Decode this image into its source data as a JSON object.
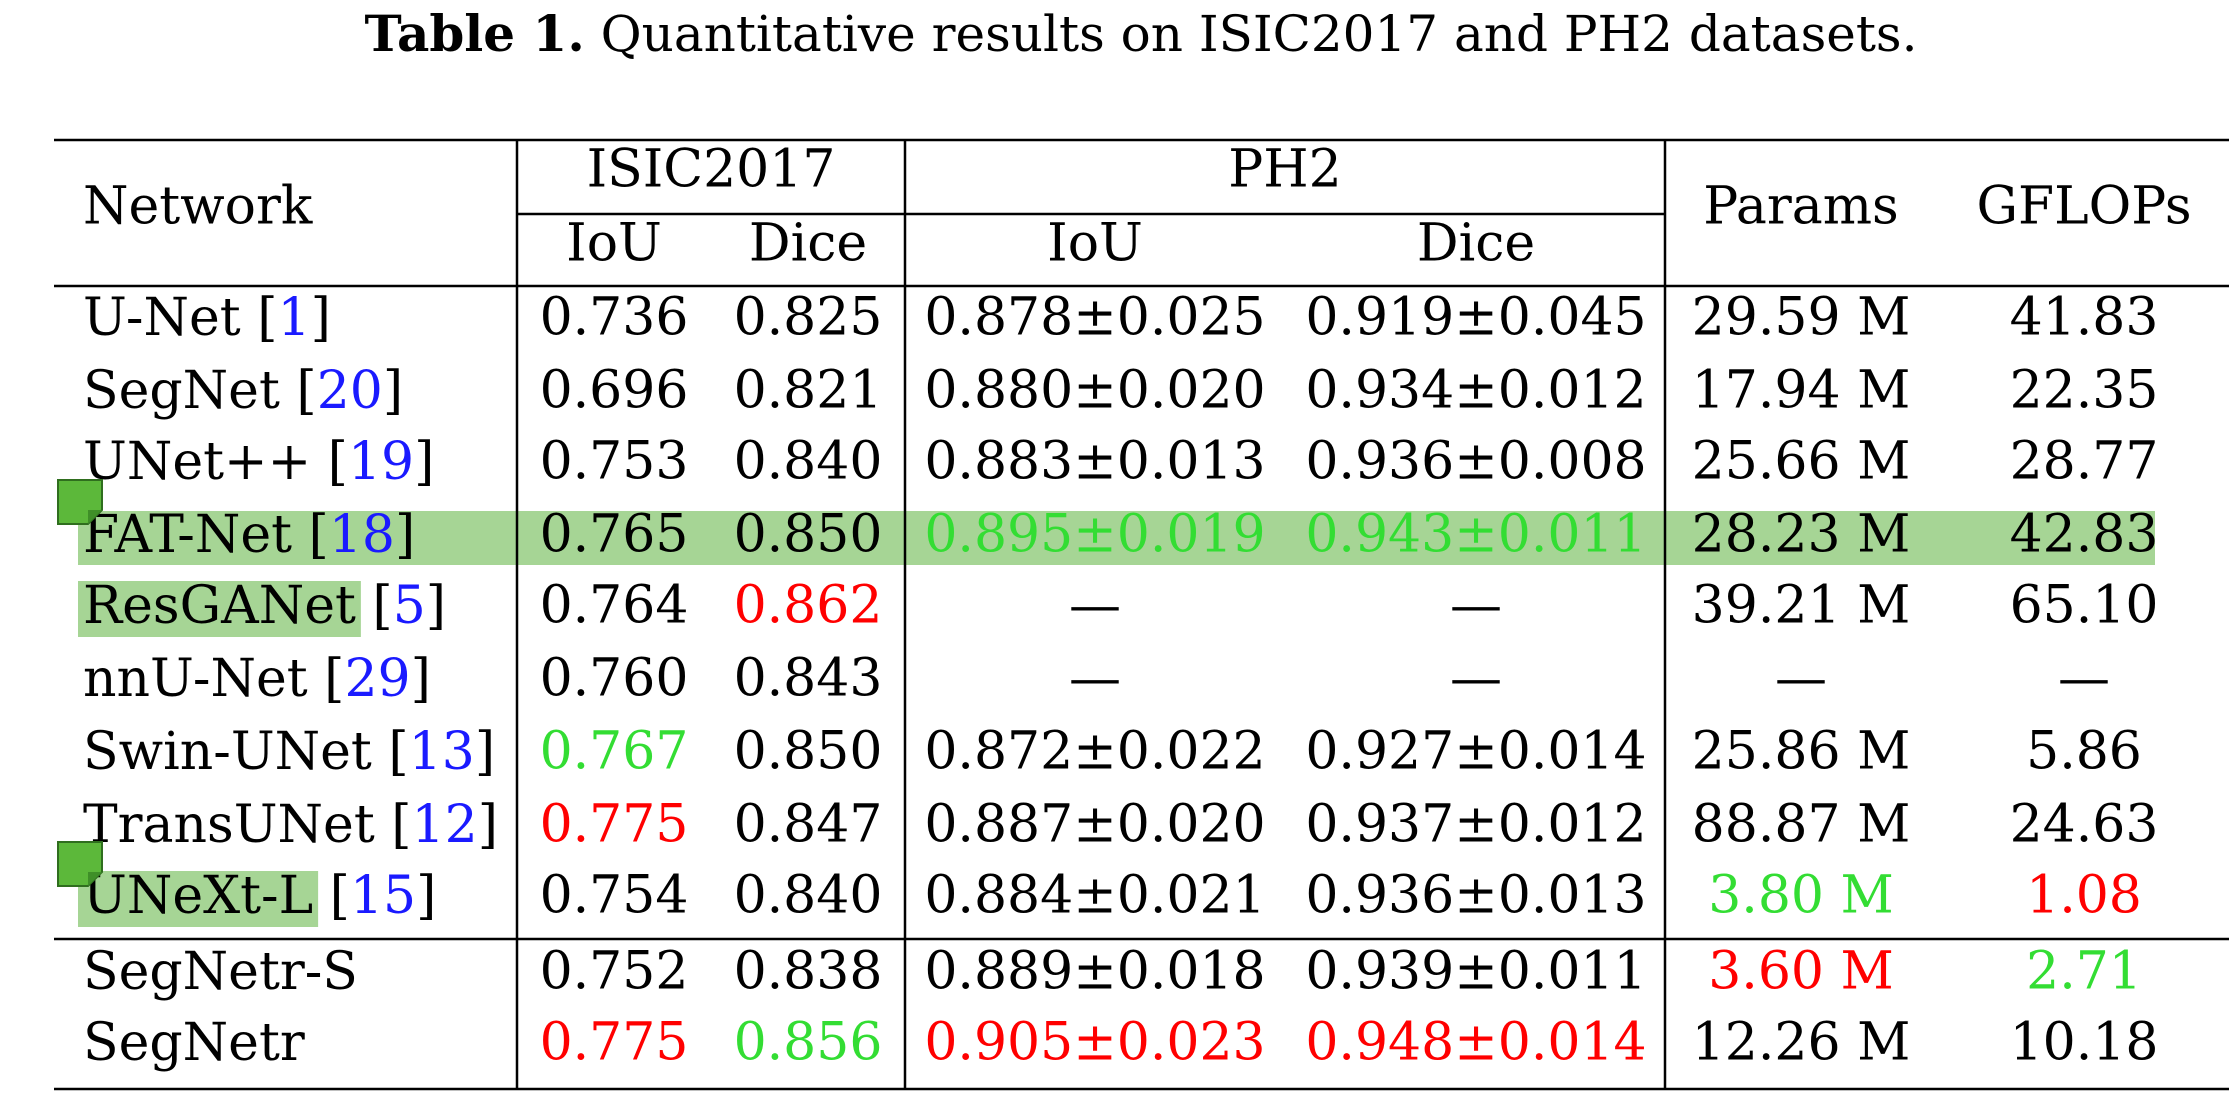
{
  "title": {
    "label": "Table 1.",
    "text": "Quantitative results on ISIC2017 and PH2 datasets."
  },
  "table": {
    "header": {
      "network": "Network",
      "groups": [
        "ISIC2017",
        "PH2"
      ],
      "sub": [
        "IoU",
        "Dice",
        "IoU",
        "Dice"
      ],
      "params": "Params",
      "gflops": "GFLOPs"
    },
    "brackets": [
      "[",
      "]"
    ],
    "rows": [
      {
        "name": "U-Net",
        "ref": "1",
        "cells": [
          "0.736",
          "0.825",
          "0.878±0.025",
          "0.919±0.045",
          "29.59 M",
          "41.83"
        ],
        "colors": [
          null,
          null,
          null,
          null,
          null,
          null
        ]
      },
      {
        "name": "SegNet",
        "ref": "20",
        "cells": [
          "0.696",
          "0.821",
          "0.880±0.020",
          "0.934±0.012",
          "17.94 M",
          "22.35"
        ],
        "colors": [
          null,
          null,
          null,
          null,
          null,
          null
        ]
      },
      {
        "name": "UNet++",
        "ref": "19",
        "cells": [
          "0.753",
          "0.840",
          "0.883±0.013",
          "0.936±0.008",
          "25.66 M",
          "28.77"
        ],
        "colors": [
          null,
          null,
          null,
          null,
          null,
          null
        ]
      },
      {
        "name": "FAT-Net",
        "ref": "18",
        "cells": [
          "0.765",
          "0.850",
          "0.895±0.019",
          "0.943±0.011",
          "28.23 M",
          "42.83"
        ],
        "colors": [
          null,
          null,
          "#33dd33",
          "#33dd33",
          null,
          null
        ],
        "highlight": "row"
      },
      {
        "name": "ResGANet",
        "ref": "5",
        "cells": [
          "0.764",
          "0.862",
          "—",
          "—",
          "39.21 M",
          "65.10"
        ],
        "colors": [
          null,
          "#ff0000",
          null,
          null,
          null,
          null
        ],
        "highlight": "name"
      },
      {
        "name": "nnU-Net",
        "ref": "29",
        "cells": [
          "0.760",
          "0.843",
          "—",
          "—",
          "—",
          "—"
        ],
        "colors": [
          null,
          null,
          null,
          null,
          null,
          null
        ]
      },
      {
        "name": "Swin-UNet",
        "ref": "13",
        "cells": [
          "0.767",
          "0.850",
          "0.872±0.022",
          "0.927±0.014",
          "25.86 M",
          "5.86"
        ],
        "colors": [
          "#33dd33",
          null,
          null,
          null,
          null,
          null
        ]
      },
      {
        "name": "TransUNet",
        "ref": "12",
        "cells": [
          "0.775",
          "0.847",
          "0.887±0.020",
          "0.937±0.012",
          "88.87 M",
          "24.63"
        ],
        "colors": [
          "#ff0000",
          null,
          null,
          null,
          null,
          null
        ]
      },
      {
        "name": "UNeXt-L",
        "ref": "15",
        "cells": [
          "0.754",
          "0.840",
          "0.884±0.021",
          "0.936±0.013",
          "3.80 M",
          "1.08"
        ],
        "colors": [
          null,
          null,
          null,
          null,
          "#33dd33",
          "#ff0000"
        ],
        "highlight": "name"
      },
      {
        "name": "SegNetr-S",
        "cells": [
          "0.752",
          "0.838",
          "0.889±0.018",
          "0.939±0.011",
          "3.60 M",
          "2.71"
        ],
        "colors": [
          null,
          null,
          null,
          null,
          "#ff0000",
          "#33dd33"
        ]
      },
      {
        "name": "SegNetr",
        "cells": [
          "0.775",
          "0.856",
          "0.905±0.023",
          "0.948±0.014",
          "12.26 M",
          "10.18"
        ],
        "colors": [
          "#ff0000",
          "#33dd33",
          "#ff0000",
          "#ff0000",
          null,
          null
        ]
      }
    ]
  }
}
